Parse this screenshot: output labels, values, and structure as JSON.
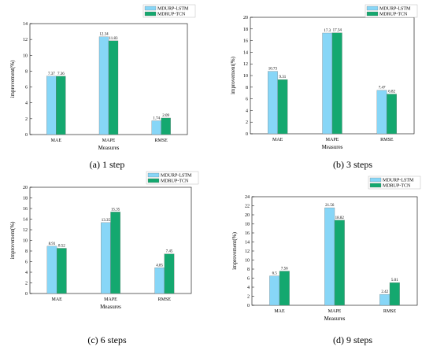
{
  "series_colors": {
    "MDURP-LSTM": "#87d6f7",
    "MDRUP-TCN": "#14a86f"
  },
  "chart_data": [
    {
      "type": "bar",
      "caption": "(a) 1 step",
      "categories": [
        "MAE",
        "MAPE",
        "RMSE"
      ],
      "series": [
        {
          "name": "MDURP-LSTM",
          "values": [
            7.37,
            12.34,
            1.74
          ]
        },
        {
          "name": "MDRUP-TCN",
          "values": [
            7.36,
            11.83,
            2.09
          ]
        }
      ],
      "xlabel": "Measures",
      "ylabel": "improvement(%)",
      "ylim": [
        0,
        14
      ],
      "yticks": [
        0,
        2,
        4,
        6,
        8,
        10,
        12,
        14
      ],
      "legend": "top-right",
      "grid": false
    },
    {
      "type": "bar",
      "caption": "(b) 3 steps",
      "categories": [
        "MAE",
        "MAPE",
        "RMSE"
      ],
      "series": [
        {
          "name": "MDURP-LSTM",
          "values": [
            10.73,
            17.3,
            7.47
          ]
        },
        {
          "name": "MDRUP-TCN",
          "values": [
            9.31,
            17.34,
            6.82
          ]
        }
      ],
      "xlabel": "Measures",
      "ylabel": "improvement(%)",
      "ylim": [
        0,
        20
      ],
      "yticks": [
        0,
        2,
        4,
        6,
        8,
        10,
        12,
        14,
        16,
        18,
        20
      ],
      "legend": "top-right",
      "grid": false
    },
    {
      "type": "bar",
      "caption": "(c) 6 steps",
      "categories": [
        "MAE",
        "MAPE",
        "RMSE"
      ],
      "series": [
        {
          "name": "MDURP-LSTM",
          "values": [
            8.91,
            13.35,
            4.85
          ]
        },
        {
          "name": "MDRUP-TCN",
          "values": [
            8.52,
            15.35,
            7.45
          ]
        }
      ],
      "xlabel": "Measures",
      "ylabel": "improvement(%)",
      "ylim": [
        0,
        20
      ],
      "yticks": [
        0,
        2,
        4,
        6,
        8,
        10,
        12,
        14,
        16,
        18,
        20
      ],
      "legend": "top-right",
      "grid": false
    },
    {
      "type": "bar",
      "caption": "(d) 9 steps",
      "categories": [
        "MAE",
        "MAPE",
        "RMSE"
      ],
      "series": [
        {
          "name": "MDURP-LSTM",
          "values": [
            6.5,
            21.56,
            2.42
          ]
        },
        {
          "name": "MDRUP-TCN",
          "values": [
            7.56,
            18.82,
            5.01
          ]
        }
      ],
      "xlabel": "Measures",
      "ylabel": "improvement(%)",
      "ylim": [
        0,
        24
      ],
      "yticks": [
        0,
        2,
        4,
        6,
        8,
        10,
        12,
        14,
        16,
        18,
        20,
        22,
        24
      ],
      "legend": "top-right",
      "grid": false
    }
  ]
}
